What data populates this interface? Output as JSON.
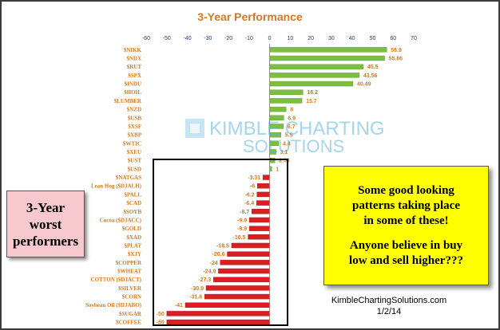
{
  "chart_data": {
    "type": "bar",
    "orientation": "horizontal",
    "title": "3-Year Performance",
    "xlabel": "",
    "ylabel": "",
    "xlim": [
      -60,
      70
    ],
    "x_ticks": [
      -60,
      -50,
      -40,
      -30,
      -20,
      -10,
      0,
      10,
      20,
      30,
      40,
      50,
      60,
      70
    ],
    "grid": false,
    "colors": {
      "positive": "#7cbf3f",
      "negative": "#d91f1f",
      "labels": "#d9791e",
      "title": "#d9791e",
      "ticks": "#1f3b73"
    },
    "categories": [
      "$NIKK",
      "$NDX",
      "$RUT",
      "$SPX",
      "$INDU",
      "$HOIL",
      "$LUMBER",
      "$NZD",
      "$USB",
      "$XSF",
      "$XBP",
      "$WTIC",
      "$XEU",
      "$UST",
      "$USD",
      "$NATGAS",
      "Lean Hog ($DJALH)",
      "$PALL",
      "$CAD",
      "$SOYB",
      "Cocoa ($DJACC)",
      "$GOLD",
      "$XAD",
      "$PLAT",
      "$XJY",
      "$COPPER",
      "$WHEAT",
      "COTTON ($DJACT)",
      "$SILVER",
      "$CORN",
      "Soybean Oil ($DJABO)",
      "$SUGAR",
      "$COFFEE"
    ],
    "values": [
      56.9,
      55.86,
      45.5,
      43.56,
      40.49,
      16.2,
      15.7,
      8,
      6.9,
      6.7,
      5.5,
      4.4,
      3.1,
      2.53,
      1,
      -3.31,
      -6,
      -6.2,
      -6.4,
      -8.7,
      -9.9,
      -9.9,
      -10.5,
      -18.5,
      -20.6,
      -24,
      -24.9,
      -27.3,
      -30.9,
      -31.6,
      -41,
      -50,
      -50
    ],
    "value_labels": [
      "56.9",
      "55.86",
      "45.5",
      "43.56",
      "40.49",
      "16.2",
      "15.7",
      "8",
      "6.9",
      "6.7",
      "5.5",
      "4.4",
      "3.1",
      "2.53",
      "1",
      "-3.31",
      "-6",
      "-6.2",
      "-6.4",
      "-8.7",
      "-9.9",
      "-9.9",
      "-10.5",
      "-18.5",
      "-20.6",
      "-24",
      "-24.9",
      "-27.3",
      "-30.9",
      "-31.6",
      "-41",
      "-50",
      "-50"
    ]
  },
  "watermark": {
    "line1": "KIMBLE CHARTING",
    "line2": "SOLUTIONS"
  },
  "worst_box": {
    "line1": "3-Year",
    "line2": "worst",
    "line3": "performers"
  },
  "comment_box": {
    "line1": "Some good looking",
    "line2": "patterns taking place",
    "line3": "in some of these!",
    "line4": "Anyone believe in buy",
    "line5": "low and sell higher???"
  },
  "credit": {
    "site": "KimbleChartingSolutions.com",
    "date": "1/2/14"
  }
}
